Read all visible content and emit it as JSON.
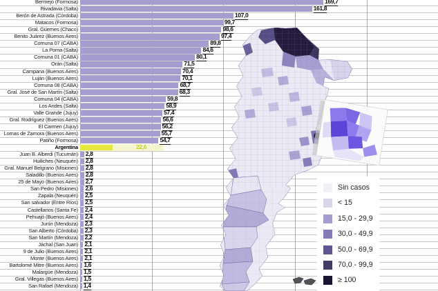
{
  "chart_data": {
    "type": "bar",
    "orientation": "horizontal",
    "title": "",
    "xlabel": "",
    "ylabel": "",
    "xlim": [
      0,
      250
    ],
    "gridline_values": [
      0,
      50,
      100,
      150,
      200,
      250
    ],
    "bar_color": "#a49dd0",
    "highlight_bar_color": "#e7e83e",
    "highlight_value_color": "#c3cf2d",
    "rows": [
      {
        "label": "Bermejo (Formosa)",
        "value": 169.7,
        "value_text": "169,7"
      },
      {
        "label": "Rivadavia (Salta)",
        "value": 161.8,
        "value_text": "161,8"
      },
      {
        "label": "Berón de Astrada (Córdoba)",
        "value": 107.0,
        "value_text": "107,0"
      },
      {
        "label": "Matacos (Formosa)",
        "value": 99.7,
        "value_text": "99,7"
      },
      {
        "label": "Gral. Güemes (Chaco)",
        "value": 98.6,
        "value_text": "98,6"
      },
      {
        "label": "Benito Juárez (Buenos Aires)",
        "value": 97.4,
        "value_text": "97,4"
      },
      {
        "label": "Comuna 07 (CABA)",
        "value": 89.8,
        "value_text": "89,8"
      },
      {
        "label": "La Poma (Salta)",
        "value": 84.6,
        "value_text": "84,6"
      },
      {
        "label": "Comuna 01 (CABA)",
        "value": 80.1,
        "value_text": "80,1"
      },
      {
        "label": "Orán (Salta)",
        "value": 71.5,
        "value_text": "71,5"
      },
      {
        "label": "Campana (Buenos Aires)",
        "value": 70.4,
        "value_text": "70,4"
      },
      {
        "label": "Luján (Buenos Aires)",
        "value": 70.1,
        "value_text": "70,1"
      },
      {
        "label": "Comuna 08 (CABA)",
        "value": 68.7,
        "value_text": "68,7"
      },
      {
        "label": "Gral. José de San Martín (Salta)",
        "value": 68.3,
        "value_text": "68,3"
      },
      {
        "label": "Comuna 04 (CABA)",
        "value": 59.8,
        "value_text": "59,8"
      },
      {
        "label": "Los Andes (Salta)",
        "value": 58.9,
        "value_text": "58,9"
      },
      {
        "label": "Valle Grande (Jujuy)",
        "value": 57.4,
        "value_text": "57,4"
      },
      {
        "label": "Gral. Rodríguez (Buenos Aires)",
        "value": 56.6,
        "value_text": "56,6"
      },
      {
        "label": "El Carmen (Jujuy)",
        "value": 56.2,
        "value_text": "56,2"
      },
      {
        "label": "Lomas de Zamora (Buenos Aires)",
        "value": 55.7,
        "value_text": "55,7"
      },
      {
        "label": "Patiño (Formosa)",
        "value": 54.7,
        "value_text": "54,7"
      },
      {
        "label": "Argentina",
        "value": 22.6,
        "value_text": "22,6",
        "highlight": true,
        "value_x": 197
      },
      {
        "label": "Juan B. Alberdi (Tucumán)",
        "value": 2.8,
        "value_text": "2,8"
      },
      {
        "label": "Huiliches (Neuquén)",
        "value": 2.8,
        "value_text": "2,8"
      },
      {
        "label": "Gral. Manuel Belgrano (Misiones)",
        "value": 2.8,
        "value_text": "2,8"
      },
      {
        "label": "Saladillo (Buenos Aires)",
        "value": 2.8,
        "value_text": "2,8"
      },
      {
        "label": "25 de Mayo (Buenos Aires)",
        "value": 2.7,
        "value_text": "2,7"
      },
      {
        "label": "San Pedro (Misiones)",
        "value": 2.6,
        "value_text": "2,6"
      },
      {
        "label": "Zapala (Neuquén)",
        "value": 2.5,
        "value_text": "2,5"
      },
      {
        "label": "San salvador (Entre Ríos)",
        "value": 2.5,
        "value_text": "2,5"
      },
      {
        "label": "Castellanos (Santa Fe)",
        "value": 2.4,
        "value_text": "2,4"
      },
      {
        "label": "Pehuajó (Buenos Aires)",
        "value": 2.4,
        "value_text": "2,4"
      },
      {
        "label": "Junín (Mendoza)",
        "value": 2.3,
        "value_text": "2,3"
      },
      {
        "label": "San Alberto (Córdoba)",
        "value": 2.3,
        "value_text": "2,3"
      },
      {
        "label": "San Martín (Mendoza)",
        "value": 2.2,
        "value_text": "2,2"
      },
      {
        "label": "Jáchal (San Juan)",
        "value": 2.1,
        "value_text": "2,1"
      },
      {
        "label": "9 de Julio (Buenos Aires)",
        "value": 2.1,
        "value_text": "2,1"
      },
      {
        "label": "Monte (Buenos Aires)",
        "value": 2.1,
        "value_text": "2,1"
      },
      {
        "label": "Bartolomé Mitre (Buenos Aires)",
        "value": 1.6,
        "value_text": "1,6"
      },
      {
        "label": "Malargüe (Mendoza)",
        "value": 1.5,
        "value_text": "1,5"
      },
      {
        "label": "Gral. Villegas (Buenos Aires)",
        "value": 1.5,
        "value_text": "1,5"
      },
      {
        "label": "San Rafael (Mendoza)",
        "value": 1.4,
        "value_text": "1,4"
      }
    ]
  },
  "legend": {
    "items": [
      {
        "label": "Sin casos",
        "color": "#f3f1f5"
      },
      {
        "label": "< 15",
        "color": "#dbd5eb"
      },
      {
        "label": "15,0 - 29,9",
        "color": "#a49dd0"
      },
      {
        "label": "30,0 - 49,9",
        "color": "#837ab6"
      },
      {
        "label": "50,0 - 69,9",
        "color": "#5f5890"
      },
      {
        "label": "70,0 - 99,9",
        "color": "#403a64"
      },
      {
        "label": "≥ 100",
        "color": "#1b1430"
      }
    ]
  },
  "map": {
    "region": "Argentina (departamentos)",
    "inset": "AMBA / Gran Buenos Aires"
  }
}
